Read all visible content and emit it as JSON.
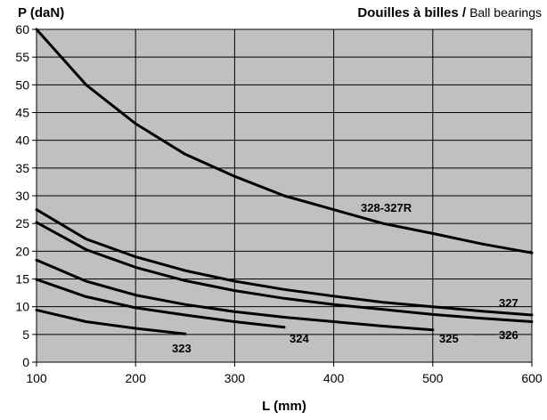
{
  "chart_data": {
    "type": "line",
    "title_bold": "Douilles à billes /",
    "title_normal": "Ball bearings",
    "xlabel": "L (mm)",
    "ylabel": "P (daN)",
    "xlim": [
      100,
      600
    ],
    "ylim": [
      0,
      60
    ],
    "xticks": [
      100,
      200,
      300,
      400,
      500,
      600
    ],
    "yticks": [
      0,
      5,
      10,
      15,
      20,
      25,
      30,
      35,
      40,
      45,
      50,
      55,
      60
    ],
    "grid": true,
    "colors": {
      "plot_bg": "#c0c0c0",
      "line": "#000000",
      "grid": "#000000"
    },
    "series": [
      {
        "name": "328-327R",
        "x": [
          100,
          150,
          200,
          250,
          300,
          350,
          400,
          450,
          500,
          550,
          600
        ],
        "y": [
          60,
          50,
          43,
          37.5,
          33.5,
          30,
          27.5,
          25,
          23.2,
          21.3,
          19.7
        ]
      },
      {
        "name": "327",
        "x": [
          100,
          150,
          200,
          250,
          300,
          350,
          400,
          450,
          500,
          550,
          600
        ],
        "y": [
          27.5,
          22.2,
          19,
          16.5,
          14.6,
          13.1,
          11.9,
          10.8,
          10,
          9.2,
          8.5
        ]
      },
      {
        "name": "326",
        "x": [
          100,
          150,
          200,
          250,
          300,
          350,
          400,
          450,
          500,
          550,
          600
        ],
        "y": [
          25.2,
          20.3,
          17.1,
          14.7,
          12.9,
          11.5,
          10.4,
          9.5,
          8.6,
          7.9,
          7.3
        ]
      },
      {
        "name": "325",
        "x": [
          100,
          150,
          200,
          250,
          300,
          350,
          400,
          450,
          500
        ],
        "y": [
          18.4,
          14.6,
          12.1,
          10.4,
          9.1,
          8.1,
          7.3,
          6.5,
          5.8
        ]
      },
      {
        "name": "324",
        "x": [
          100,
          150,
          200,
          250,
          300,
          350
        ],
        "y": [
          14.9,
          11.8,
          9.8,
          8.5,
          7.3,
          6.3
        ]
      },
      {
        "name": "323",
        "x": [
          100,
          150,
          200,
          250
        ],
        "y": [
          9.4,
          7.3,
          6.1,
          5.1
        ]
      }
    ]
  }
}
